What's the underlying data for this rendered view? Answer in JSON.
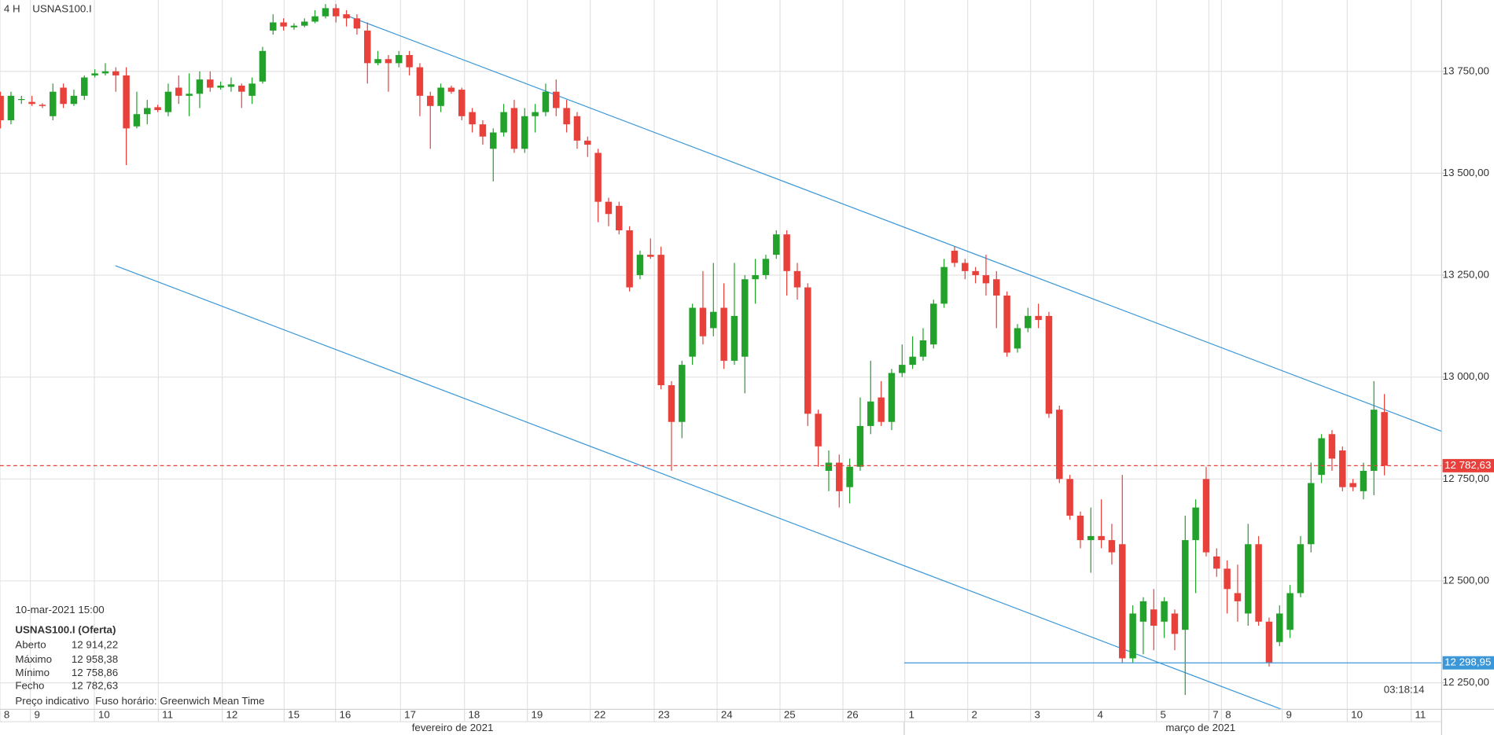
{
  "chart_data": {
    "type": "candlestick",
    "timeframe": "4 H",
    "title": "USNAS100.I",
    "up_color": "#22a22a",
    "down_color": "#e8413c",
    "grid": true,
    "ylim": [
      12185,
      13925
    ],
    "yticks": [
      {
        "value": 12250,
        "label": "12 250,00"
      },
      {
        "value": 12500,
        "label": "12 500,00"
      },
      {
        "value": 12750,
        "label": "12 750,00"
      },
      {
        "value": 13000,
        "label": "13 000,00"
      },
      {
        "value": 13250,
        "label": "13 250,00"
      },
      {
        "value": 13500,
        "label": "13 500,00"
      },
      {
        "value": 13750,
        "label": "13 750,00"
      }
    ],
    "xlim": [
      0,
      137.5
    ],
    "xticks": [
      {
        "value": 0,
        "label": "8"
      },
      {
        "value": 2.9,
        "label": "9"
      },
      {
        "value": 9,
        "label": "10"
      },
      {
        "value": 15.1,
        "label": "11"
      },
      {
        "value": 21.2,
        "label": "12"
      },
      {
        "value": 27.1,
        "label": "15"
      },
      {
        "value": 32,
        "label": "16"
      },
      {
        "value": 38.2,
        "label": "17"
      },
      {
        "value": 44.3,
        "label": "18"
      },
      {
        "value": 50.3,
        "label": "19"
      },
      {
        "value": 56.3,
        "label": "22"
      },
      {
        "value": 62.4,
        "label": "23"
      },
      {
        "value": 68.4,
        "label": "24"
      },
      {
        "value": 74.4,
        "label": "25"
      },
      {
        "value": 80.4,
        "label": "26"
      },
      {
        "value": 86.3,
        "label": "1"
      },
      {
        "value": 92.3,
        "label": "2"
      },
      {
        "value": 98.3,
        "label": "3"
      },
      {
        "value": 104.3,
        "label": "4"
      },
      {
        "value": 110.3,
        "label": "5"
      },
      {
        "value": 115.3,
        "label": "7"
      },
      {
        "value": 116.5,
        "label": "8"
      },
      {
        "value": 122.3,
        "label": "9"
      },
      {
        "value": 128.5,
        "label": "10"
      },
      {
        "value": 134.6,
        "label": "11"
      }
    ],
    "months": [
      "fevereiro de 2021",
      "março de 2021"
    ],
    "open": [
      13690,
      13630,
      13680,
      13675,
      13668,
      13640,
      13710,
      13670,
      13690,
      13740,
      13745,
      13750,
      13740,
      13615,
      13645,
      13662,
      13650,
      13710,
      13690,
      13695,
      13730,
      13710,
      13712,
      13715,
      13690,
      13725,
      13850,
      13870,
      13858,
      13862,
      13872,
      13885,
      13905,
      13890,
      13880,
      13850,
      13770,
      13780,
      13770,
      13790,
      13760,
      13690,
      13665,
      13710,
      13705,
      13650,
      13620,
      13560,
      13600,
      13660,
      13560,
      13640,
      13650,
      13700,
      13660,
      13640,
      13580,
      13550,
      13430,
      13420,
      13360,
      13250,
      13300,
      13300,
      12980,
      12890,
      13050,
      13170,
      13120,
      13170,
      13040,
      13050,
      13240,
      13250,
      13300,
      13350,
      13260,
      13220,
      12910,
      12770,
      12790,
      12730,
      12780,
      12880,
      12950,
      12890,
      13010,
      13030,
      13050,
      13080,
      13180,
      13310,
      13280,
      13260,
      13250,
      13240,
      13200,
      13070,
      13120,
      13150,
      13150,
      12920,
      12750,
      12660,
      12600,
      12610,
      12600,
      12590,
      12310,
      12400,
      12430,
      12400,
      12420,
      12380,
      12600,
      12750,
      12560,
      12530,
      12470,
      12420,
      12590,
      12400,
      12350,
      12380,
      12470,
      12590,
      12760,
      12860,
      12820,
      12740,
      12720,
      12770,
      12914.22
    ],
    "high": [
      13700,
      13700,
      13690,
      13690,
      13672,
      13720,
      13720,
      13705,
      13740,
      13755,
      13770,
      13760,
      13760,
      13700,
      13680,
      13668,
      13720,
      13740,
      13745,
      13750,
      13750,
      13725,
      13735,
      13720,
      13735,
      13810,
      13890,
      13880,
      13868,
      13880,
      13900,
      13915,
      13915,
      13900,
      13890,
      13870,
      13800,
      13790,
      13800,
      13800,
      13770,
      13700,
      13720,
      13715,
      13710,
      13660,
      13630,
      13610,
      13670,
      13680,
      13660,
      13670,
      13720,
      13730,
      13680,
      13650,
      13590,
      13560,
      13440,
      13430,
      13370,
      13310,
      13340,
      13320,
      12990,
      13040,
      13180,
      13260,
      13280,
      13230,
      13280,
      13250,
      13290,
      13300,
      13360,
      13360,
      13280,
      13230,
      12920,
      12820,
      12810,
      12800,
      12950,
      13040,
      12990,
      13020,
      13080,
      13100,
      13120,
      13190,
      13290,
      13320,
      13290,
      13270,
      13300,
      13260,
      13210,
      13130,
      13170,
      13180,
      13160,
      12930,
      12760,
      12670,
      12680,
      12700,
      12640,
      12760,
      12440,
      12460,
      12480,
      12460,
      12430,
      12660,
      12700,
      12780,
      12580,
      12550,
      12540,
      12640,
      12610,
      12410,
      12440,
      12490,
      12610,
      12790,
      12860,
      12870,
      12830,
      12750,
      12790,
      12990,
      12958.38
    ],
    "low": [
      13610,
      13620,
      13670,
      13665,
      13660,
      13630,
      13660,
      13665,
      13680,
      13735,
      13740,
      13700,
      13520,
      13610,
      13620,
      13650,
      13640,
      13670,
      13640,
      13660,
      13700,
      13705,
      13700,
      13660,
      13670,
      13720,
      13840,
      13850,
      13852,
      13858,
      13868,
      13880,
      13870,
      13860,
      13840,
      13720,
      13765,
      13700,
      13760,
      13740,
      13640,
      13560,
      13650,
      13695,
      13630,
      13600,
      13570,
      13480,
      13590,
      13550,
      13550,
      13600,
      13640,
      13640,
      13600,
      13560,
      13540,
      13380,
      13370,
      13350,
      13210,
      13240,
      13290,
      12970,
      12770,
      12850,
      13030,
      13080,
      13100,
      13020,
      13030,
      12960,
      13180,
      13240,
      13290,
      13200,
      13190,
      12880,
      12780,
      12720,
      12680,
      12690,
      12770,
      12860,
      12880,
      12870,
      13000,
      13020,
      13040,
      13070,
      13170,
      13270,
      13240,
      13230,
      13200,
      13120,
      13050,
      13060,
      13110,
      13120,
      12900,
      12740,
      12650,
      12580,
      12520,
      12580,
      12540,
      12300,
      12300,
      12320,
      12330,
      12360,
      12330,
      12220,
      12470,
      12560,
      12510,
      12420,
      12400,
      12390,
      12390,
      12290,
      12340,
      12360,
      12460,
      12570,
      12740,
      12770,
      12720,
      12720,
      12700,
      12710,
      12758.86
    ],
    "close": [
      13630,
      13690,
      13682,
      13670,
      13665,
      13700,
      13670,
      13690,
      13735,
      13745,
      13750,
      13740,
      13610,
      13645,
      13660,
      13655,
      13700,
      13690,
      13695,
      13730,
      13710,
      13715,
      13718,
      13700,
      13720,
      13800,
      13870,
      13860,
      13862,
      13872,
      13885,
      13905,
      13885,
      13880,
      13855,
      13770,
      13780,
      13770,
      13790,
      13760,
      13690,
      13665,
      13710,
      13700,
      13640,
      13620,
      13590,
      13600,
      13650,
      13560,
      13640,
      13650,
      13700,
      13660,
      13620,
      13580,
      13570,
      13430,
      13400,
      13360,
      13220,
      13300,
      13295,
      12980,
      12890,
      13030,
      13170,
      13100,
      13160,
      13040,
      13150,
      13240,
      13250,
      13290,
      13350,
      13260,
      13220,
      12910,
      12830,
      12790,
      12720,
      12780,
      12880,
      12940,
      12890,
      13010,
      13030,
      13050,
      13090,
      13180,
      13270,
      13280,
      13260,
      13250,
      13230,
      13200,
      13060,
      13120,
      13150,
      13140,
      12910,
      12750,
      12660,
      12600,
      12610,
      12600,
      12570,
      12310,
      12420,
      12450,
      12390,
      12450,
      12370,
      12600,
      12680,
      12570,
      12530,
      12480,
      12450,
      12590,
      12400,
      12300,
      12420,
      12470,
      12590,
      12740,
      12850,
      12800,
      12730,
      12730,
      12770,
      12920,
      12782.63
    ],
    "current_price": {
      "value": 12782.63,
      "label": "12 782,63",
      "color": "#e8413c"
    },
    "support_level": {
      "value": 12298.95,
      "label": "12 298,95",
      "color": "#3b97d8"
    },
    "countdown": "03:18:14",
    "info": {
      "datetime": "10-mar-2021 15:00",
      "symbol": "USNAS100.I (Oferta)",
      "rows": [
        [
          "Aberto",
          "12 914,22"
        ],
        [
          "Máximo",
          "12 958,38"
        ],
        [
          "Mínimo",
          "12 758,86"
        ],
        [
          "Fecho",
          "12 782,63"
        ]
      ],
      "footer": [
        "Preço indicativo",
        "Fuso horário: Greenwich Mean Time"
      ]
    }
  }
}
